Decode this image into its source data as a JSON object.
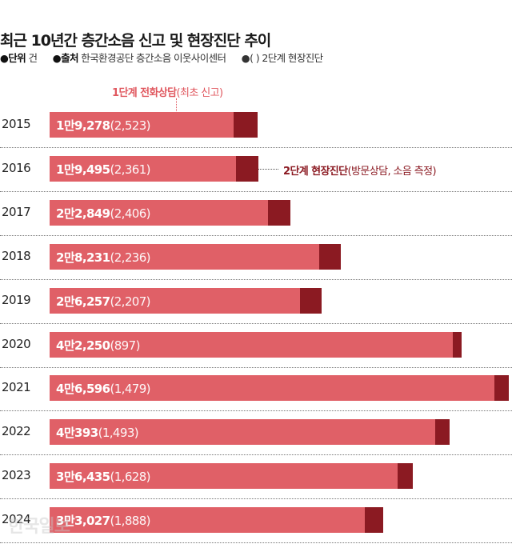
{
  "header": {
    "title": "최근 10년간 층간소음 신고 및 현장진단 추이",
    "unit_label": "●단위",
    "unit_value": "건",
    "source_label": "●출처",
    "source_value": "한국환경공단 층간소음 이웃사이센터",
    "paren_note": "●( ) 2단계 현장진단"
  },
  "annotations": {
    "stage1_bold": "1단계 전화상담",
    "stage1_note": "(최초 신고)",
    "stage2_bold": "2단계 현장진단",
    "stage2_note": "(방문상담, 소음 측정)"
  },
  "watermark": "한국일보",
  "colors": {
    "stage1": "#e06067",
    "stage2": "#8b1a22"
  },
  "chart_data": {
    "type": "bar",
    "orientation": "horizontal",
    "stacked": true,
    "title": "최근 10년간 층간소음 신고 및 현장진단 추이",
    "categories": [
      "2015",
      "2016",
      "2017",
      "2018",
      "2019",
      "2020",
      "2021",
      "2022",
      "2023",
      "2024"
    ],
    "series": [
      {
        "name": "1단계 전화상담(최초 신고)",
        "values": [
          19278,
          19495,
          22849,
          28231,
          26257,
          42250,
          46596,
          40393,
          36435,
          33027
        ],
        "labels": [
          "1만9,278",
          "1만9,495",
          "2만2,849",
          "2만8,231",
          "2만6,257",
          "4만2,250",
          "4만6,596",
          "4만393",
          "3만6,435",
          "3만3,027"
        ]
      },
      {
        "name": "2단계 현장진단(방문상담, 소음 측정)",
        "values": [
          2523,
          2361,
          2406,
          2236,
          2207,
          897,
          1479,
          1493,
          1628,
          1888
        ],
        "labels": [
          "(2,523)",
          "(2,361)",
          "(2,406)",
          "(2,236)",
          "(2,207)",
          "(897)",
          "(1,479)",
          "(1,493)",
          "(1,628)",
          "(1,888)"
        ]
      }
    ],
    "unit": "건",
    "grid": false,
    "legend": "annotations"
  }
}
